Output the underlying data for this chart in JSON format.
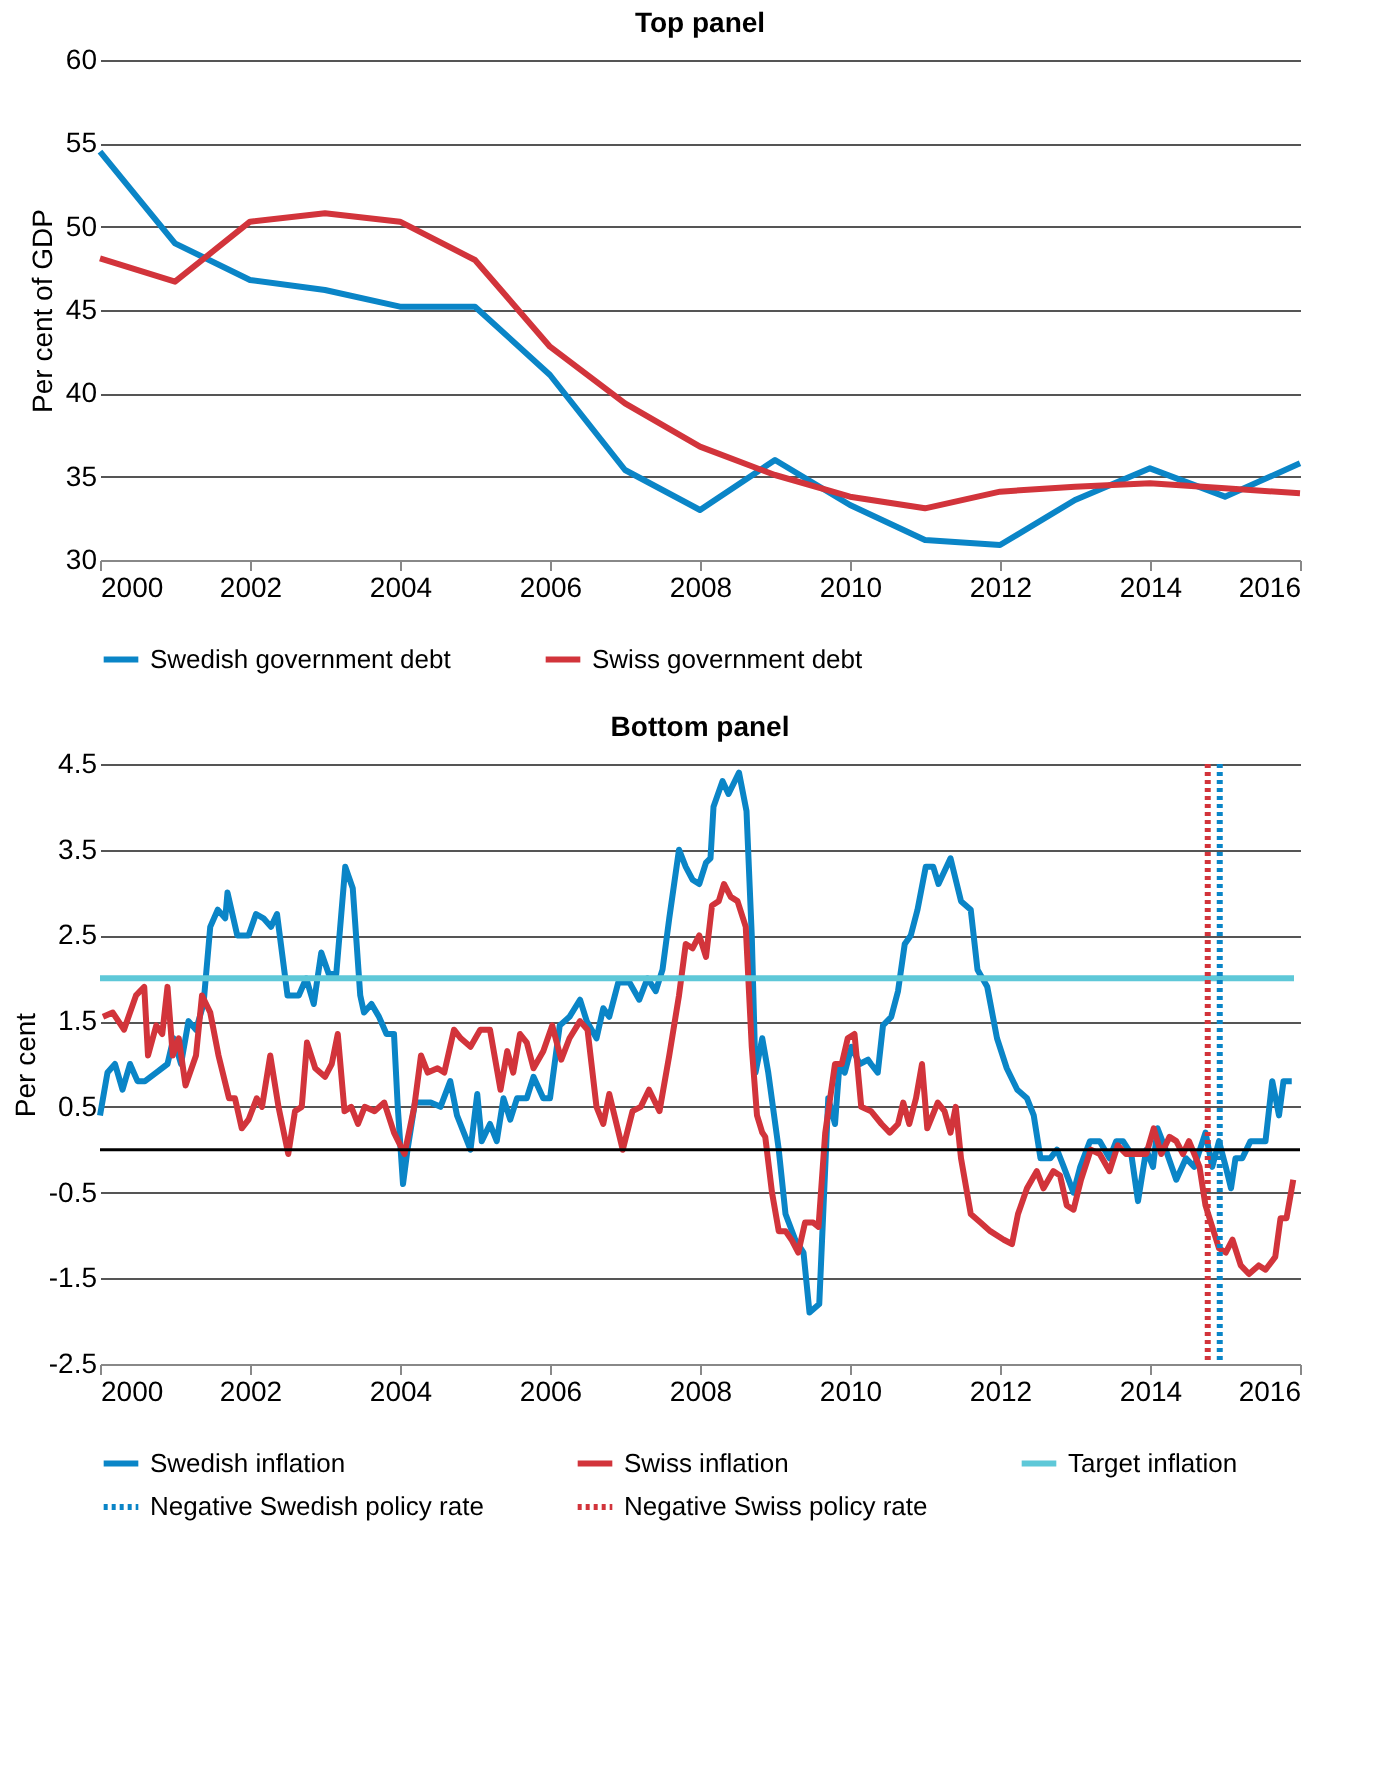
{
  "chart_data": [
    {
      "type": "line",
      "title": "Top panel",
      "ylabel": "Per cent of GDP",
      "x": [
        2000,
        2001,
        2002,
        2003,
        2004,
        2005,
        2006,
        2007,
        2008,
        2009,
        2010,
        2011,
        2012,
        2013,
        2014,
        2015,
        2016
      ],
      "series": [
        {
          "name": "Swedish government debt",
          "color": "#0a85c7",
          "values": [
            54.5,
            49,
            46.8,
            46.2,
            45.2,
            45.2,
            41.1,
            35.4,
            33,
            36,
            33.3,
            31.2,
            30.9,
            33.6,
            35.5,
            33.8,
            35.8
          ]
        },
        {
          "name": "Swiss government debt",
          "color": "#d2343b",
          "values": [
            48.1,
            46.7,
            50.3,
            50.8,
            50.3,
            48,
            42.8,
            39.4,
            36.8,
            35.1,
            33.8,
            33.1,
            34.1,
            34.4,
            34.6,
            34.3,
            34.0
          ]
        }
      ],
      "xlim": [
        2000,
        2016
      ],
      "xticks": [
        2000,
        2002,
        2004,
        2006,
        2008,
        2010,
        2012,
        2014,
        2016
      ],
      "ylim": [
        30,
        60
      ],
      "yticks": [
        30,
        35,
        40,
        45,
        50,
        55,
        60
      ],
      "grid": "y",
      "legend": "bottom",
      "line_style": "solid"
    },
    {
      "type": "line",
      "title": "Bottom panel",
      "ylabel": "Per cent",
      "series": [
        {
          "name": "Swedish inflation",
          "color": "#0a85c7",
          "x": [
            2000.0,
            2000.1,
            2000.2,
            2000.3,
            2000.4,
            2000.5,
            2000.6,
            2000.75,
            2000.9,
            2000.98,
            2001.08,
            2001.18,
            2001.28,
            2001.38,
            2001.47,
            2001.57,
            2001.67,
            2001.7,
            2001.83,
            2001.98,
            2002.08,
            2002.18,
            2002.28,
            2002.36,
            2002.5,
            2002.65,
            2002.75,
            2002.85,
            2002.95,
            2003.05,
            2003.15,
            2003.27,
            2003.37,
            2003.47,
            2003.52,
            2003.62,
            2003.72,
            2003.82,
            2003.92,
            2003.97,
            2004.04,
            2004.1,
            2004.2,
            2004.28,
            2004.41,
            2004.54,
            2004.67,
            2004.76,
            2004.94,
            2005.03,
            2005.09,
            2005.2,
            2005.29,
            2005.38,
            2005.47,
            2005.56,
            2005.69,
            2005.78,
            2005.91,
            2006.0,
            2006.13,
            2006.26,
            2006.4,
            2006.49,
            2006.62,
            2006.71,
            2006.79,
            2006.91,
            2007.06,
            2007.19,
            2007.3,
            2007.41,
            2007.5,
            2007.59,
            2007.72,
            2007.81,
            2007.9,
            2007.99,
            2008.08,
            2008.14,
            2008.18,
            2008.3,
            2008.38,
            2008.52,
            2008.62,
            2008.69,
            2008.74,
            2008.83,
            2008.91,
            2009.05,
            2009.14,
            2009.27,
            2009.38,
            2009.46,
            2009.59,
            2009.71,
            2009.8,
            2009.86,
            2009.93,
            2010.02,
            2010.13,
            2010.24,
            2010.28,
            2010.37,
            2010.44,
            2010.55,
            2010.64,
            2010.73,
            2010.81,
            2010.9,
            2011.01,
            2011.11,
            2011.18,
            2011.34,
            2011.48,
            2011.61,
            2011.7,
            2011.83,
            2011.96,
            2012.09,
            2012.23,
            2012.36,
            2012.45,
            2012.54,
            2012.67,
            2012.76,
            2012.85,
            2012.98,
            2013.07,
            2013.2,
            2013.33,
            2013.46,
            2013.55,
            2013.64,
            2013.75,
            2013.84,
            2013.95,
            2014.04,
            2014.1,
            2014.21,
            2014.35,
            2014.48,
            2014.59,
            2014.74,
            2014.83,
            2014.92,
            2015.01,
            2015.08,
            2015.14,
            2015.23,
            2015.34,
            2015.54,
            2015.63,
            2015.72,
            2015.78,
            2015.89
          ],
          "values": [
            0.4,
            0.9,
            1.0,
            0.7,
            1.0,
            0.8,
            0.8,
            0.9,
            1.0,
            1.3,
            1.0,
            1.5,
            1.4,
            1.7,
            2.6,
            2.8,
            2.7,
            3.0,
            2.5,
            2.5,
            2.75,
            2.7,
            2.6,
            2.75,
            1.8,
            1.8,
            2.0,
            1.7,
            2.3,
            2.05,
            2.05,
            3.3,
            3.05,
            1.8,
            1.6,
            1.7,
            1.55,
            1.35,
            1.35,
            0.5,
            -0.4,
            0.0,
            0.55,
            0.55,
            0.55,
            0.5,
            0.8,
            0.4,
            0.0,
            0.65,
            0.1,
            0.3,
            0.1,
            0.6,
            0.35,
            0.6,
            0.6,
            0.85,
            0.6,
            0.6,
            1.45,
            1.55,
            1.75,
            1.5,
            1.3,
            1.65,
            1.55,
            1.95,
            1.95,
            1.75,
            2.0,
            1.85,
            2.1,
            2.7,
            3.5,
            3.3,
            3.15,
            3.1,
            3.35,
            3.4,
            4.0,
            4.3,
            4.15,
            4.4,
            3.95,
            2.5,
            0.9,
            1.3,
            0.9,
            0.0,
            -0.75,
            -1.05,
            -1.2,
            -1.9,
            -1.8,
            0.6,
            0.3,
            1.0,
            0.9,
            1.2,
            1.0,
            1.05,
            1.0,
            0.9,
            1.45,
            1.55,
            1.85,
            2.4,
            2.5,
            2.8,
            3.3,
            3.3,
            3.1,
            3.4,
            2.9,
            2.8,
            2.1,
            1.9,
            1.3,
            0.95,
            0.7,
            0.6,
            0.4,
            -0.1,
            -0.1,
            0.0,
            -0.2,
            -0.5,
            -0.2,
            0.1,
            0.1,
            -0.1,
            0.1,
            0.1,
            -0.05,
            -0.6,
            0.0,
            -0.2,
            0.25,
            0.0,
            -0.35,
            -0.1,
            -0.2,
            0.2,
            -0.2,
            0.1,
            -0.2,
            -0.45,
            -0.1,
            -0.1,
            0.1,
            0.1,
            0.8,
            0.4,
            0.8,
            0.8
          ]
        },
        {
          "name": "Swiss inflation",
          "color": "#d2343b",
          "x": [
            2000.04,
            2000.17,
            2000.32,
            2000.48,
            2000.59,
            2000.64,
            2000.75,
            2000.83,
            2000.9,
            2000.97,
            2001.05,
            2001.14,
            2001.28,
            2001.36,
            2001.47,
            2001.58,
            2001.72,
            2001.8,
            2001.89,
            2001.98,
            2002.09,
            2002.16,
            2002.27,
            2002.38,
            2002.51,
            2002.6,
            2002.69,
            2002.76,
            2002.87,
            2003.0,
            2003.09,
            2003.17,
            2003.26,
            2003.35,
            2003.44,
            2003.53,
            2003.66,
            2003.79,
            2003.92,
            2004.06,
            2004.19,
            2004.28,
            2004.37,
            2004.5,
            2004.59,
            2004.72,
            2004.81,
            2004.94,
            2005.07,
            2005.2,
            2005.34,
            2005.43,
            2005.51,
            2005.6,
            2005.69,
            2005.78,
            2005.91,
            2006.03,
            2006.15,
            2006.26,
            2006.4,
            2006.5,
            2006.62,
            2006.71,
            2006.79,
            2006.97,
            2007.1,
            2007.21,
            2007.32,
            2007.46,
            2007.59,
            2007.72,
            2007.81,
            2007.9,
            2007.99,
            2008.08,
            2008.16,
            2008.25,
            2008.32,
            2008.41,
            2008.5,
            2008.61,
            2008.69,
            2008.76,
            2008.83,
            2008.87,
            2008.96,
            2009.05,
            2009.14,
            2009.22,
            2009.31,
            2009.4,
            2009.51,
            2009.58,
            2009.67,
            2009.8,
            2009.89,
            2009.97,
            2010.06,
            2010.15,
            2010.28,
            2010.42,
            2010.53,
            2010.64,
            2010.71,
            2010.79,
            2010.88,
            2010.96,
            2011.03,
            2011.17,
            2011.26,
            2011.34,
            2011.41,
            2011.48,
            2011.61,
            2011.74,
            2011.87,
            2012.05,
            2012.16,
            2012.24,
            2012.36,
            2012.49,
            2012.58,
            2012.71,
            2012.8,
            2012.89,
            2012.98,
            2013.08,
            2013.21,
            2013.33,
            2013.46,
            2013.57,
            2013.68,
            2013.82,
            2013.95,
            2014.05,
            2014.15,
            2014.26,
            2014.35,
            2014.44,
            2014.52,
            2014.66,
            2014.74,
            2014.83,
            2014.92,
            2015.01,
            2015.1,
            2015.21,
            2015.32,
            2015.45,
            2015.54,
            2015.67,
            2015.74,
            2015.82,
            2015.91
          ],
          "values": [
            1.55,
            1.6,
            1.4,
            1.8,
            1.9,
            1.1,
            1.45,
            1.35,
            1.9,
            1.1,
            1.3,
            0.75,
            1.1,
            1.8,
            1.6,
            1.1,
            0.6,
            0.6,
            0.25,
            0.35,
            0.6,
            0.5,
            1.1,
            0.5,
            -0.05,
            0.45,
            0.5,
            1.25,
            0.95,
            0.85,
            1.0,
            1.35,
            0.45,
            0.5,
            0.3,
            0.5,
            0.45,
            0.55,
            0.2,
            -0.05,
            0.5,
            1.1,
            0.9,
            0.95,
            0.9,
            1.4,
            1.3,
            1.2,
            1.4,
            1.4,
            0.7,
            1.15,
            0.9,
            1.35,
            1.25,
            0.95,
            1.15,
            1.45,
            1.05,
            1.3,
            1.5,
            1.4,
            0.5,
            0.3,
            0.65,
            0.0,
            0.45,
            0.5,
            0.7,
            0.45,
            1.1,
            1.8,
            2.4,
            2.35,
            2.5,
            2.25,
            2.85,
            2.9,
            3.1,
            2.95,
            2.9,
            2.6,
            1.2,
            0.4,
            0.2,
            0.15,
            -0.5,
            -0.95,
            -0.95,
            -1.05,
            -1.2,
            -0.85,
            -0.85,
            -0.9,
            0.2,
            1.0,
            1.0,
            1.3,
            1.35,
            0.5,
            0.45,
            0.3,
            0.2,
            0.3,
            0.55,
            0.3,
            0.6,
            1.0,
            0.25,
            0.55,
            0.45,
            0.2,
            0.5,
            -0.1,
            -0.75,
            -0.85,
            -0.95,
            -1.05,
            -1.1,
            -0.75,
            -0.45,
            -0.25,
            -0.45,
            -0.25,
            -0.3,
            -0.65,
            -0.7,
            -0.35,
            0.0,
            -0.05,
            -0.25,
            0.05,
            -0.05,
            -0.05,
            -0.05,
            0.25,
            -0.05,
            0.15,
            0.1,
            -0.05,
            0.1,
            -0.2,
            -0.65,
            -0.9,
            -1.15,
            -1.2,
            -1.05,
            -1.35,
            -1.45,
            -1.35,
            -1.4,
            -1.25,
            -0.8,
            -0.8,
            -0.35
          ]
        },
        {
          "name": "Target inflation",
          "color": "#5ec8d8",
          "x": [
            2000,
            2015.92
          ],
          "values": [
            2,
            2
          ]
        }
      ],
      "ref_lines": [
        {
          "axis": "x",
          "value": 2014.93,
          "label": "Negative Swedish policy rate",
          "color": "#0a85c7",
          "line_style": "dotted"
        },
        {
          "axis": "x",
          "value": 2014.77,
          "label": "Negative Swiss policy rate",
          "color": "#d2343b",
          "line_style": "dotted"
        },
        {
          "axis": "y",
          "value": 0,
          "color": "#000000",
          "line_style": "solid"
        }
      ],
      "xlim": [
        2000,
        2016
      ],
      "xticks": [
        2000,
        2002,
        2004,
        2006,
        2008,
        2010,
        2012,
        2014,
        2016
      ],
      "ylim": [
        -2.5,
        4.5
      ],
      "yticks": [
        -2.5,
        -1.5,
        -0.5,
        0.5,
        1.5,
        2.5,
        3.5,
        4.5
      ],
      "grid": "y",
      "legend": "bottom",
      "line_style": "solid"
    }
  ]
}
